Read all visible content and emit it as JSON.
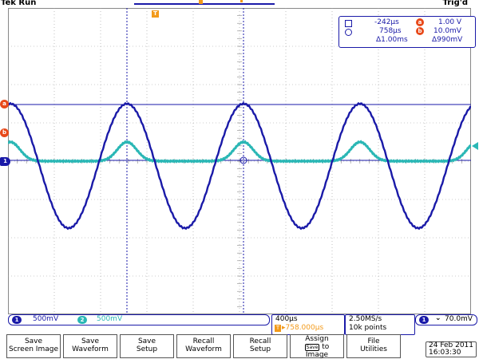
{
  "header": {
    "status": "Tek Run",
    "trigger_status": "Trig'd",
    "trigger_position_label": "T"
  },
  "cursor_readout": {
    "a_time": "-242µs",
    "b_time": "758µs",
    "delta_time": "Δ1.00ms",
    "a_volt": "1.00 V",
    "b_volt": "10.0mV",
    "delta_volt": "Δ990mV",
    "badge_a": "a",
    "badge_b": "b"
  },
  "markers": {
    "ch1_label": "1",
    "cursor_a_label": "a",
    "cursor_b_label": "b"
  },
  "channels": [
    {
      "id": "1",
      "scale": "500mV",
      "color": "#1a1aa8"
    },
    {
      "id": "2",
      "scale": "500mV",
      "color": "#2ab7b5"
    }
  ],
  "timebase": {
    "scale": "400µs",
    "trig_label": "T",
    "position": "▸758.000µs"
  },
  "acquisition": {
    "sample_rate": "2.50MS/s",
    "record_length": "10k points"
  },
  "trigger": {
    "source": "1",
    "slope_icon": "falling-edge",
    "slope_glyph": "⌄",
    "level": "70.0mV"
  },
  "buttons": [
    {
      "line1": "Save",
      "line2": "Screen Image"
    },
    {
      "line1": "Save",
      "line2": "Waveform"
    },
    {
      "line1": "Save",
      "line2": "Setup"
    },
    {
      "line1": "Recall",
      "line2": "Waveform"
    },
    {
      "line1": "Recall",
      "line2": "Setup"
    },
    {
      "line1": "Assign",
      "line2_pre": "",
      "save_icon": "Save",
      "line2_post": "to",
      "line3": "Image"
    },
    {
      "line1": "File",
      "line2": "Utilities"
    }
  ],
  "datetime": {
    "date": "24 Feb  2011",
    "time": "16:03:30"
  },
  "colors": {
    "ch1": "#1a1aa8",
    "ch2": "#2ab7b5",
    "accent": "#f39a1a",
    "cursor_badge": "#e8491a"
  }
}
